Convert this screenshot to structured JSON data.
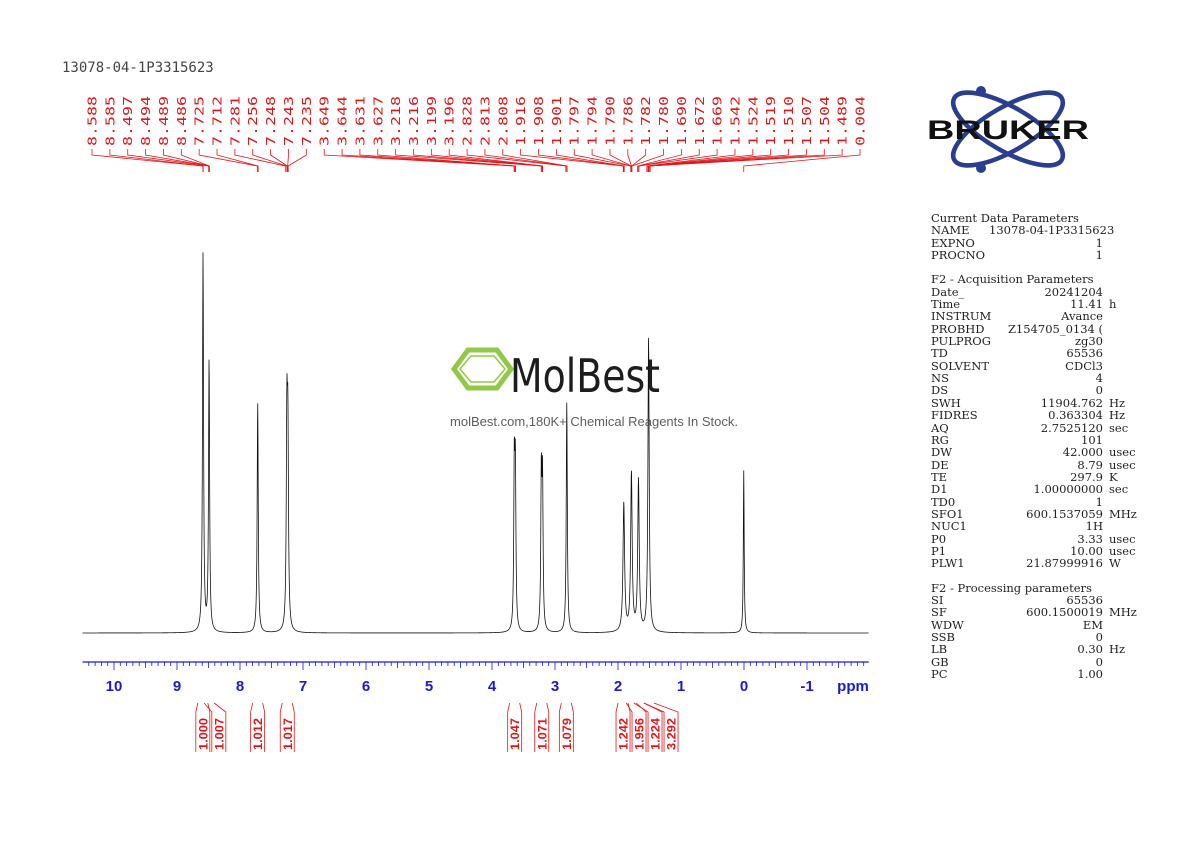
{
  "sample_id": "13078-04-1P3315623",
  "logo": {
    "brand": "BRUKER",
    "color": "#2a3d8f"
  },
  "watermark": {
    "name": "MolBest",
    "tagline": "molBest.com,180K+ Chemical Reagents In Stock.",
    "color": "#8dc63f"
  },
  "chart_data": {
    "type": "line",
    "title": "",
    "xlabel": "ppm",
    "ylabel": "",
    "xlim": [
      10.5,
      -2.0
    ],
    "x_reversed": true,
    "x_ticks": [
      "10",
      "9",
      "8",
      "7",
      "6",
      "5",
      "4",
      "3",
      "2",
      "1",
      "0",
      "-1"
    ],
    "x_tick_values": [
      10,
      9,
      8,
      7,
      6,
      5,
      4,
      3,
      2,
      1,
      0,
      -1
    ],
    "axis_color": "#1a1ad0",
    "peak_label_color": "#e0161b",
    "peak_labels": [
      "8.588",
      "8.585",
      "8.497",
      "8.494",
      "8.489",
      "8.486",
      "7.725",
      "7.712",
      "7.281",
      "7.256",
      "7.248",
      "7.243",
      "7.235",
      "3.649",
      "3.644",
      "3.631",
      "3.627",
      "3.218",
      "3.216",
      "3.199",
      "3.196",
      "2.828",
      "2.813",
      "2.808",
      "1.916",
      "1.908",
      "1.901",
      "1.797",
      "1.794",
      "1.790",
      "1.786",
      "1.782",
      "1.780",
      "1.690",
      "1.672",
      "1.669",
      "1.542",
      "1.524",
      "1.519",
      "1.510",
      "1.507",
      "1.504",
      "1.489",
      "0.004"
    ],
    "peak_positions": [
      8.588,
      8.585,
      8.497,
      8.494,
      8.489,
      8.486,
      7.725,
      7.712,
      7.281,
      7.256,
      7.248,
      7.243,
      7.235,
      3.649,
      3.644,
      3.631,
      3.627,
      3.218,
      3.216,
      3.199,
      3.196,
      2.828,
      2.813,
      2.808,
      1.916,
      1.908,
      1.901,
      1.797,
      1.794,
      1.79,
      1.786,
      1.782,
      1.78,
      1.69,
      1.672,
      1.669,
      1.542,
      1.524,
      1.519,
      1.51,
      1.507,
      1.504,
      1.489,
      0.004
    ],
    "peaks": [
      {
        "ppm": 8.587,
        "height": 1.0,
        "width": 0.01
      },
      {
        "ppm": 8.491,
        "height": 0.72,
        "width": 0.01
      },
      {
        "ppm": 7.719,
        "height": 0.61,
        "width": 0.01
      },
      {
        "ppm": 7.256,
        "height": 0.52,
        "width": 0.011
      },
      {
        "ppm": 7.24,
        "height": 0.48,
        "width": 0.011
      },
      {
        "ppm": 3.646,
        "height": 0.42,
        "width": 0.01
      },
      {
        "ppm": 3.629,
        "height": 0.4,
        "width": 0.01
      },
      {
        "ppm": 3.217,
        "height": 0.4,
        "width": 0.01
      },
      {
        "ppm": 3.198,
        "height": 0.38,
        "width": 0.01
      },
      {
        "ppm": 2.813,
        "height": 0.61,
        "width": 0.01
      },
      {
        "ppm": 1.908,
        "height": 0.34,
        "width": 0.015
      },
      {
        "ppm": 1.787,
        "height": 0.42,
        "width": 0.014
      },
      {
        "ppm": 1.675,
        "height": 0.4,
        "width": 0.014
      },
      {
        "ppm": 1.515,
        "height": 0.78,
        "width": 0.012
      },
      {
        "ppm": 0.004,
        "height": 0.43,
        "width": 0.008
      }
    ],
    "integrals": [
      {
        "label": "1.000",
        "ppm": 8.59
      },
      {
        "label": "1.007",
        "ppm": 8.49
      },
      {
        "label": "1.012",
        "ppm": 7.72
      },
      {
        "label": "1.017",
        "ppm": 7.25
      },
      {
        "label": "1.047",
        "ppm": 3.64
      },
      {
        "label": "1.071",
        "ppm": 3.21
      },
      {
        "label": "1.079",
        "ppm": 2.82
      },
      {
        "label": "1.242",
        "ppm": 1.92
      },
      {
        "label": "1.956",
        "ppm": 1.79
      },
      {
        "label": "1.224",
        "ppm": 1.67
      },
      {
        "label": "3.292",
        "ppm": 1.51
      }
    ]
  },
  "parameters": {
    "current": {
      "title": "Current Data Parameters",
      "rows": [
        {
          "key": "NAME",
          "value": "13078-04-1P3315623",
          "unit": ""
        },
        {
          "key": "EXPNO",
          "value": "1",
          "unit": ""
        },
        {
          "key": "PROCNO",
          "value": "1",
          "unit": ""
        }
      ]
    },
    "acquisition": {
      "title": "F2 - Acquisition Parameters",
      "rows": [
        {
          "key": "Date_",
          "value": "20241204",
          "unit": ""
        },
        {
          "key": "Time",
          "value": "11.41",
          "unit": "h"
        },
        {
          "key": "INSTRUM",
          "value": "Avance",
          "unit": ""
        },
        {
          "key": "PROBHD",
          "value": "Z154705_0134 (",
          "unit": ""
        },
        {
          "key": "PULPROG",
          "value": "zg30",
          "unit": ""
        },
        {
          "key": "TD",
          "value": "65536",
          "unit": ""
        },
        {
          "key": "SOLVENT",
          "value": "CDCl3",
          "unit": ""
        },
        {
          "key": "NS",
          "value": "4",
          "unit": ""
        },
        {
          "key": "DS",
          "value": "0",
          "unit": ""
        },
        {
          "key": "SWH",
          "value": "11904.762",
          "unit": "Hz"
        },
        {
          "key": "FIDRES",
          "value": "0.363304",
          "unit": "Hz"
        },
        {
          "key": "AQ",
          "value": "2.7525120",
          "unit": "sec"
        },
        {
          "key": "RG",
          "value": "101",
          "unit": ""
        },
        {
          "key": "DW",
          "value": "42.000",
          "unit": "usec"
        },
        {
          "key": "DE",
          "value": "8.79",
          "unit": "usec"
        },
        {
          "key": "TE",
          "value": "297.9",
          "unit": "K"
        },
        {
          "key": "D1",
          "value": "1.00000000",
          "unit": "sec"
        },
        {
          "key": "TD0",
          "value": "1",
          "unit": ""
        },
        {
          "key": "SFO1",
          "value": "600.1537059",
          "unit": "MHz"
        },
        {
          "key": "NUC1",
          "value": "1H",
          "unit": ""
        },
        {
          "key": "P0",
          "value": "3.33",
          "unit": "usec"
        },
        {
          "key": "P1",
          "value": "10.00",
          "unit": "usec"
        },
        {
          "key": "PLW1",
          "value": "21.87999916",
          "unit": "W"
        }
      ]
    },
    "processing": {
      "title": "F2 - Processing parameters",
      "rows": [
        {
          "key": "SI",
          "value": "65536",
          "unit": ""
        },
        {
          "key": "SF",
          "value": "600.1500019",
          "unit": "MHz"
        },
        {
          "key": "WDW",
          "value": "EM",
          "unit": ""
        },
        {
          "key": "SSB",
          "value": "0",
          "unit": ""
        },
        {
          "key": "LB",
          "value": "0.30",
          "unit": "Hz"
        },
        {
          "key": "GB",
          "value": "0",
          "unit": ""
        },
        {
          "key": "PC",
          "value": "1.00",
          "unit": ""
        }
      ]
    }
  }
}
